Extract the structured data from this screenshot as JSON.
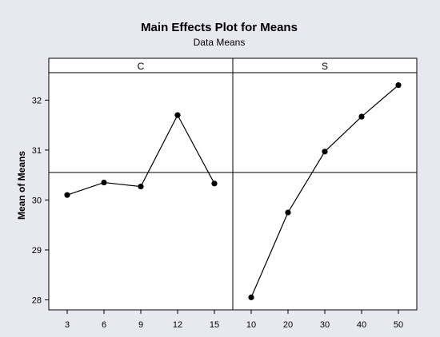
{
  "chart_data": {
    "type": "line",
    "title": "Main Effects Plot for Means",
    "subtitle": "Data Means",
    "ylabel": "Mean of Means",
    "ylim": [
      27.8,
      32.55
    ],
    "yticks": [
      28,
      29,
      30,
      31,
      32
    ],
    "grand_mean": 30.55,
    "grid": false,
    "colors": {
      "background": "#e8e8f0",
      "plot_bg": "#ffffff",
      "line": "#000000"
    },
    "panels": [
      {
        "name": "C",
        "x": [
          3,
          6,
          9,
          12,
          15
        ],
        "xticks": [
          "3",
          "6",
          "9",
          "12",
          "15"
        ],
        "values": [
          30.1,
          30.35,
          30.27,
          31.7,
          30.33
        ]
      },
      {
        "name": "S",
        "x": [
          10,
          20,
          30,
          40,
          50
        ],
        "xticks": [
          "10",
          "20",
          "30",
          "40",
          "50"
        ],
        "values": [
          28.05,
          29.75,
          30.97,
          31.67,
          32.3
        ]
      }
    ]
  }
}
